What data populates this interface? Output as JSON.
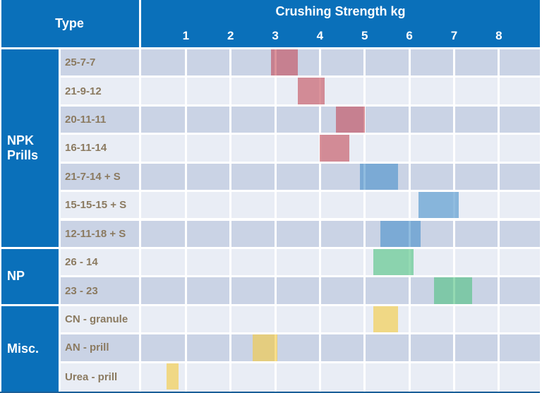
{
  "header": {
    "type_label": "Type",
    "axis_title": "Crushing Strength kg",
    "axis_ticks": [
      "1",
      "2",
      "3",
      "4",
      "5",
      "6",
      "7",
      "8"
    ]
  },
  "groups": [
    {
      "label": "NPK Prills",
      "row_count": 7
    },
    {
      "label": "NP",
      "row_count": 2
    },
    {
      "label": "Misc.",
      "row_count": 3
    }
  ],
  "chart_data": {
    "type": "bar",
    "orientation": "horizontal-range",
    "title": "Crushing Strength kg",
    "xlabel": "Crushing Strength kg",
    "ylabel": "Type",
    "x_ticks": [
      1,
      2,
      3,
      4,
      5,
      6,
      7,
      8
    ],
    "xlim": [
      0,
      8.92
    ],
    "grid": true,
    "rows": [
      {
        "group": "NPK Prills",
        "label": "25-7-7",
        "range_kg": [
          2.9,
          3.5
        ],
        "series": "red"
      },
      {
        "group": "NPK Prills",
        "label": "21-9-12",
        "range_kg": [
          3.5,
          4.1
        ],
        "series": "red"
      },
      {
        "group": "NPK Prills",
        "label": "20-11-11",
        "range_kg": [
          4.35,
          5.0
        ],
        "series": "red"
      },
      {
        "group": "NPK Prills",
        "label": "16-11-14",
        "range_kg": [
          4.0,
          4.65
        ],
        "series": "red"
      },
      {
        "group": "NPK Prills",
        "label": "21-7-14 + S",
        "range_kg": [
          4.9,
          5.75
        ],
        "series": "blue"
      },
      {
        "group": "NPK Prills",
        "label": "15-15-15 + S",
        "range_kg": [
          6.2,
          7.1
        ],
        "series": "blue"
      },
      {
        "group": "NPK Prills",
        "label": "12-11-18 + S",
        "range_kg": [
          5.35,
          6.25
        ],
        "series": "blue"
      },
      {
        "group": "NP",
        "label": "26 - 14",
        "range_kg": [
          5.2,
          6.1
        ],
        "series": "green"
      },
      {
        "group": "NP",
        "label": "23 - 23",
        "range_kg": [
          6.55,
          7.4
        ],
        "series": "green"
      },
      {
        "group": "Misc.",
        "label": "CN - granule",
        "range_kg": [
          5.2,
          5.75
        ],
        "series": "yellow"
      },
      {
        "group": "Misc.",
        "label": "AN - prill",
        "range_kg": [
          2.5,
          3.05
        ],
        "series": "yellow"
      },
      {
        "group": "Misc.",
        "label": "Urea - prill",
        "range_kg": [
          0.57,
          0.83
        ],
        "series": "yellow"
      }
    ]
  },
  "colors": {
    "header_blue": "#0a70ba",
    "row_dark": "#cad3e5",
    "row_light": "#e9edf5",
    "grid_white": "#ffffff",
    "label_text": "#8b7a60",
    "bottom_border": "#1a5f98",
    "series": {
      "red": "rgba(195,73,86,0.6)",
      "blue": "rgba(70,144,201,0.6)",
      "green": "rgba(76,194,127,0.6)",
      "yellow": "rgba(245,202,58,0.6)"
    }
  }
}
